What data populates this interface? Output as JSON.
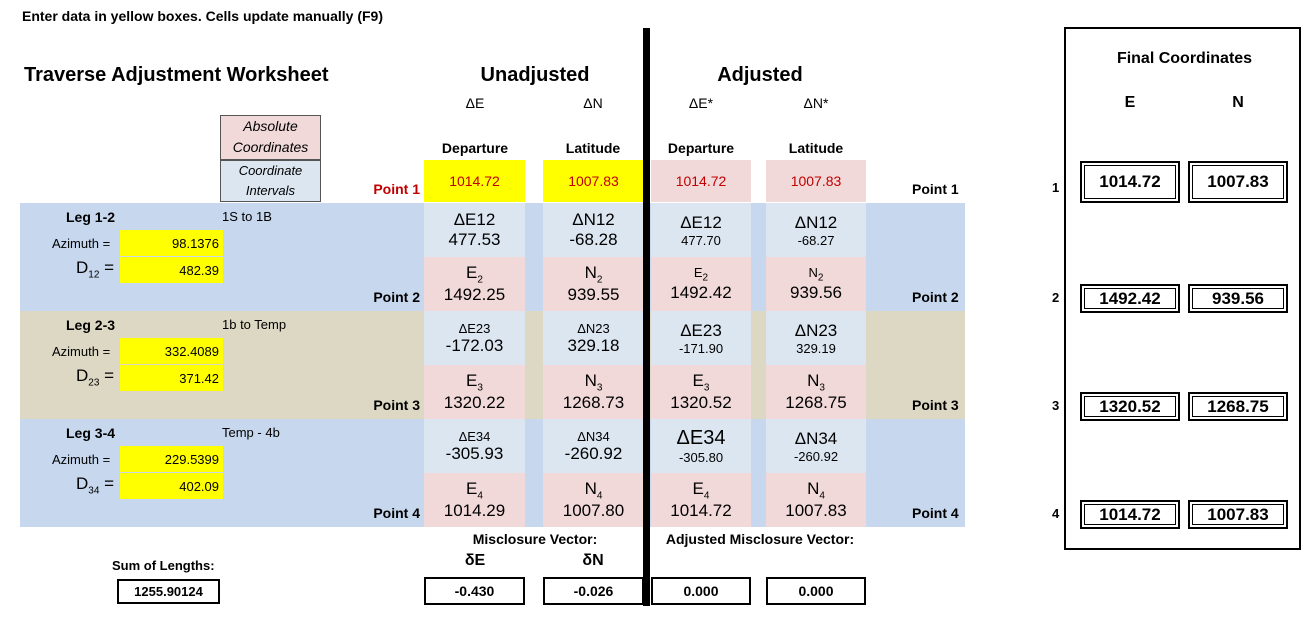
{
  "instructions": "Enter data in yellow boxes.  Cells update manually (F9)",
  "title": "Traverse Adjustment Worksheet",
  "headers": {
    "unadjusted": "Unadjusted",
    "adjusted": "Adjusted",
    "dE": "ΔE",
    "dN": "ΔN",
    "dE_adj": "ΔE*",
    "dN_adj": "ΔN*",
    "departure": "Departure",
    "latitude": "Latitude"
  },
  "legend": {
    "absolute": [
      "Absolute",
      "Coordinates"
    ],
    "intervals": [
      "Coordinate",
      "Intervals"
    ]
  },
  "start": {
    "label": "Point 1",
    "unadj_e": "1014.72",
    "unadj_n": "1007.83",
    "adj_e": "1014.72",
    "adj_n": "1007.83",
    "right_label": "Point 1"
  },
  "azimuth_label": "Azimuth =",
  "legs": [
    {
      "name": "Leg 1-2",
      "desc": "1S to 1B",
      "azimuth": "98.1376",
      "d_base": "D",
      "d_sub": "12",
      "distance": "482.39",
      "de_label": "ΔE12",
      "dn_label": "ΔN12",
      "de": "477.53",
      "dn": "-68.28",
      "ade_label": "ΔE12",
      "adn_label": "ΔN12",
      "ade": "477.70",
      "adn": "-68.27",
      "e_base": "E",
      "n_base": "N",
      "sub": "2",
      "point": "Point 2",
      "e": "1492.25",
      "n": "939.55",
      "ae": "1492.42",
      "an": "939.56"
    },
    {
      "name": "Leg 2-3",
      "desc": "1b to Temp",
      "azimuth": "332.4089",
      "d_base": "D",
      "d_sub": "23",
      "distance": "371.42",
      "de_label": "ΔE23",
      "dn_label": "ΔN23",
      "de": "-172.03",
      "dn": "329.18",
      "ade_label": "ΔE23",
      "adn_label": "ΔN23",
      "ade": "-171.90",
      "adn": "329.19",
      "e_base": "E",
      "n_base": "N",
      "sub": "3",
      "point": "Point 3",
      "e": "1320.22",
      "n": "1268.73",
      "ae": "1320.52",
      "an": "1268.75"
    },
    {
      "name": "Leg 3-4",
      "desc": "Temp - 4b",
      "azimuth": "229.5399",
      "d_base": "D",
      "d_sub": "34",
      "distance": "402.09",
      "de_label": "ΔE34",
      "dn_label": "ΔN34",
      "de": "-305.93",
      "dn": "-260.92",
      "ade_label": "ΔE34",
      "adn_label": "ΔN34",
      "ade": "-305.80",
      "adn": "-260.92",
      "e_base": "E",
      "n_base": "N",
      "sub": "4",
      "point": "Point 4",
      "e": "1014.29",
      "n": "1007.80",
      "ae": "1014.72",
      "an": "1007.83"
    }
  ],
  "misclosure": {
    "label": "Misclosure Vector:",
    "de_label": "δE",
    "dn_label": "δN",
    "de": "-0.430",
    "dn": "-0.026",
    "adj_label": "Adjusted Misclosure Vector:",
    "ade": "0.000",
    "adn": "0.000"
  },
  "sum": {
    "label": "Sum of Lengths:",
    "value": "1255.90124"
  },
  "final": {
    "title": "Final Coordinates",
    "e_header": "E",
    "n_header": "N",
    "rows": [
      {
        "idx": "1",
        "e": "1014.72",
        "n": "1007.83"
      },
      {
        "idx": "2",
        "e": "1492.42",
        "n": "939.56"
      },
      {
        "idx": "3",
        "e": "1320.52",
        "n": "1268.75"
      },
      {
        "idx": "4",
        "e": "1014.72",
        "n": "1007.83"
      }
    ]
  },
  "right_points": [
    "Point 2",
    "Point 3",
    "Point 4"
  ]
}
